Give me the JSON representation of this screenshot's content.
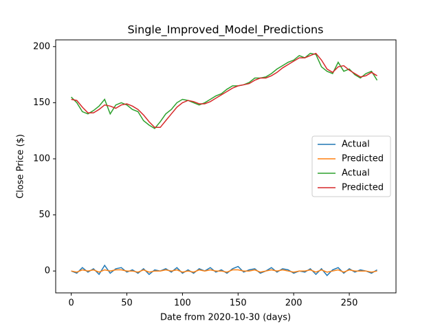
{
  "chart_data": {
    "type": "line",
    "title": "Single_Improved_Model_Predictions",
    "xlabel": "Date from 2020-10-30 (days)",
    "ylabel": "Close Price ($)",
    "x": [
      0,
      5,
      10,
      15,
      20,
      25,
      30,
      35,
      40,
      45,
      50,
      55,
      60,
      65,
      70,
      75,
      80,
      85,
      90,
      95,
      100,
      105,
      110,
      115,
      120,
      125,
      130,
      135,
      140,
      145,
      150,
      155,
      160,
      165,
      170,
      175,
      180,
      185,
      190,
      195,
      200,
      205,
      210,
      215,
      220,
      225,
      230,
      235,
      240,
      245,
      250,
      255,
      260,
      265,
      270,
      275
    ],
    "series": [
      {
        "name": "Actual",
        "color": "#1f77b4",
        "values": [
          0,
          -2,
          3,
          -1,
          2,
          -3,
          5,
          -2,
          2,
          3,
          -1,
          1,
          -2,
          2,
          -3,
          1,
          0,
          2,
          -1,
          3,
          -2,
          1,
          -2,
          2,
          0,
          3,
          -1,
          1,
          -2,
          2,
          4,
          -1,
          1,
          2,
          -2,
          0,
          3,
          -1,
          2,
          1,
          -2,
          0,
          -1,
          2,
          -3,
          2,
          -4,
          1,
          3,
          -2,
          2,
          -1,
          1,
          0,
          -2,
          1
        ]
      },
      {
        "name": "Predicted",
        "color": "#ff7f0e",
        "values": [
          0,
          -1,
          1,
          0,
          1,
          -1,
          1,
          0,
          1,
          1,
          0,
          0,
          -1,
          1,
          -1,
          0,
          0,
          1,
          0,
          1,
          -1,
          0,
          -1,
          1,
          0,
          1,
          0,
          0,
          -1,
          1,
          1,
          0,
          0,
          1,
          -1,
          0,
          1,
          0,
          1,
          0,
          -1,
          0,
          0,
          1,
          -1,
          1,
          -1,
          0,
          1,
          -1,
          1,
          0,
          0,
          0,
          -1,
          0
        ]
      },
      {
        "name": "Actual",
        "color": "#2ca02c",
        "values": [
          155,
          150,
          142,
          140,
          143,
          147,
          153,
          140,
          148,
          150,
          148,
          144,
          142,
          134,
          130,
          127,
          133,
          140,
          144,
          150,
          153,
          152,
          150,
          148,
          150,
          153,
          156,
          158,
          162,
          165,
          165,
          166,
          168,
          172,
          172,
          173,
          176,
          180,
          183,
          186,
          188,
          192,
          190,
          194,
          193,
          182,
          178,
          176,
          186,
          178,
          180,
          175,
          172,
          176,
          178,
          170
        ]
      },
      {
        "name": "Predicted",
        "color": "#d62728",
        "values": [
          153,
          152,
          146,
          141,
          141,
          144,
          148,
          147,
          145,
          148,
          149,
          147,
          144,
          139,
          133,
          128,
          128,
          134,
          140,
          146,
          150,
          152,
          151,
          149,
          149,
          151,
          154,
          157,
          160,
          163,
          165,
          166,
          167,
          170,
          172,
          172,
          174,
          177,
          181,
          184,
          187,
          190,
          190,
          192,
          194,
          188,
          180,
          177,
          182,
          183,
          179,
          176,
          173,
          174,
          177,
          174
        ]
      }
    ],
    "xlim": [
      -14,
      292
    ],
    "ylim": [
      -19.5,
      206
    ],
    "xticks": [
      0,
      50,
      100,
      150,
      200,
      250
    ],
    "yticks": [
      0,
      50,
      100,
      150,
      200
    ],
    "legend": "center right"
  }
}
